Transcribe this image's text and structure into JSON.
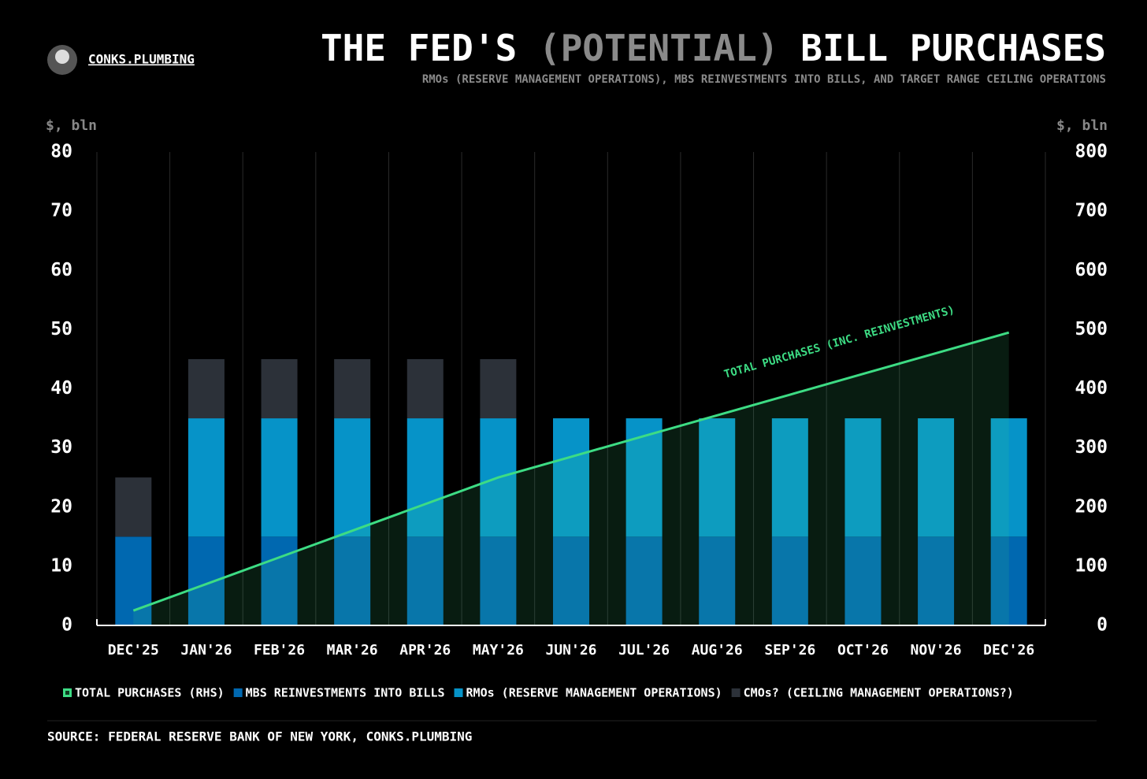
{
  "brand": "CONKS.PLUMBING",
  "chart_data": {
    "type": "bar",
    "stacked": true,
    "title_parts": [
      "THE FED'S",
      "(POTENTIAL)",
      "BILL PURCHASES"
    ],
    "subtitle": "RMOs (RESERVE MANAGEMENT OPERATIONS), MBS REINVESTMENTS INTO BILLS, AND TARGET RANGE CEILING OPERATIONS",
    "y_label": "$, bln",
    "y2_label": "$, bln",
    "categories": [
      "DEC'25",
      "JAN'26",
      "FEB'26",
      "MAR'26",
      "APR'26",
      "MAY'26",
      "JUN'26",
      "JUL'26",
      "AUG'26",
      "SEP'26",
      "OCT'26",
      "NOV'26",
      "DEC'26"
    ],
    "series": [
      {
        "name": "TOTAL PURCHASES (RHS)",
        "type": "line",
        "axis": "y2",
        "color": "#3ddc84",
        "values": [
          25,
          70,
          115,
          160,
          205,
          250,
          285,
          320,
          355,
          390,
          425,
          460,
          495
        ]
      },
      {
        "name": "MBS REINVESTMENTS INTO BILLS",
        "color": "#0068b0",
        "values": [
          15,
          15,
          15,
          15,
          15,
          15,
          15,
          15,
          15,
          15,
          15,
          15,
          15
        ]
      },
      {
        "name": "RMOs (RESERVE MANAGEMENT OPERATIONS)",
        "color": "#0693c8",
        "values": [
          0,
          20,
          20,
          20,
          20,
          20,
          20,
          20,
          20,
          20,
          20,
          20,
          20
        ]
      },
      {
        "name": "CMOs? (CEILING MANAGEMENT OPERATIONS?)",
        "color": "#2c3139",
        "values": [
          10,
          10,
          10,
          10,
          10,
          10,
          0,
          0,
          0,
          0,
          0,
          0,
          0
        ]
      }
    ],
    "annotation": "TOTAL PURCHASES (INC. REINVESTMENTS)",
    "ylim": [
      0,
      80
    ],
    "yticks": [
      0,
      10,
      20,
      30,
      40,
      50,
      60,
      70,
      80
    ],
    "y2lim": [
      0,
      800
    ],
    "y2ticks": [
      0,
      100,
      200,
      300,
      400,
      500,
      600,
      700,
      800
    ],
    "source": "SOURCE: FEDERAL RESERVE BANK OF NEW YORK, CONKS.PLUMBING"
  }
}
